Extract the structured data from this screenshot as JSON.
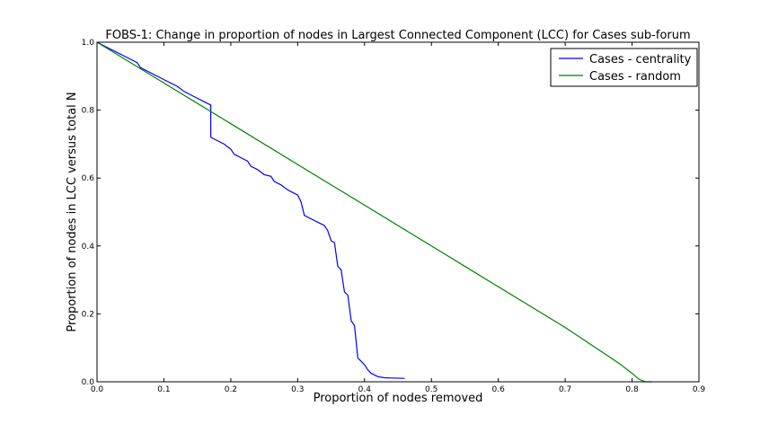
{
  "chart_data": {
    "type": "line",
    "title": "FOBS-1: Change in proportion of nodes in Largest Connected Component (LCC) for Cases sub-forum",
    "xlabel": "Proportion of nodes removed",
    "ylabel": "Proportion of nodes in LCC versus total N",
    "xlim": [
      0,
      0.9
    ],
    "ylim": [
      0,
      1.0
    ],
    "xticks": [
      "0.0",
      "0.1",
      "0.2",
      "0.3",
      "0.4",
      "0.5",
      "0.6",
      "0.7",
      "0.8",
      "0.9"
    ],
    "yticks": [
      "0.0",
      "0.2",
      "0.4",
      "0.6",
      "0.8",
      "1.0"
    ],
    "legend_position": "top-right",
    "series": [
      {
        "name": "Cases - centrality",
        "color": "#0000ff",
        "points": [
          [
            0.0,
            1.0
          ],
          [
            0.02,
            0.98
          ],
          [
            0.04,
            0.96
          ],
          [
            0.06,
            0.94
          ],
          [
            0.065,
            0.925
          ],
          [
            0.08,
            0.91
          ],
          [
            0.1,
            0.89
          ],
          [
            0.12,
            0.87
          ],
          [
            0.13,
            0.855
          ],
          [
            0.15,
            0.835
          ],
          [
            0.16,
            0.825
          ],
          [
            0.17,
            0.815
          ],
          [
            0.17,
            0.72
          ],
          [
            0.18,
            0.71
          ],
          [
            0.19,
            0.7
          ],
          [
            0.2,
            0.685
          ],
          [
            0.205,
            0.67
          ],
          [
            0.215,
            0.66
          ],
          [
            0.225,
            0.65
          ],
          [
            0.23,
            0.635
          ],
          [
            0.24,
            0.625
          ],
          [
            0.25,
            0.61
          ],
          [
            0.26,
            0.605
          ],
          [
            0.265,
            0.59
          ],
          [
            0.275,
            0.58
          ],
          [
            0.285,
            0.565
          ],
          [
            0.29,
            0.56
          ],
          [
            0.3,
            0.55
          ],
          [
            0.305,
            0.53
          ],
          [
            0.31,
            0.49
          ],
          [
            0.32,
            0.48
          ],
          [
            0.33,
            0.47
          ],
          [
            0.34,
            0.46
          ],
          [
            0.345,
            0.445
          ],
          [
            0.35,
            0.415
          ],
          [
            0.355,
            0.41
          ],
          [
            0.36,
            0.34
          ],
          [
            0.365,
            0.33
          ],
          [
            0.37,
            0.265
          ],
          [
            0.375,
            0.255
          ],
          [
            0.38,
            0.18
          ],
          [
            0.385,
            0.165
          ],
          [
            0.39,
            0.07
          ],
          [
            0.395,
            0.06
          ],
          [
            0.4,
            0.05
          ],
          [
            0.405,
            0.035
          ],
          [
            0.41,
            0.025
          ],
          [
            0.42,
            0.015
          ],
          [
            0.43,
            0.012
          ],
          [
            0.44,
            0.011
          ],
          [
            0.46,
            0.01
          ]
        ]
      },
      {
        "name": "Cases - random",
        "color": "#008000",
        "points": [
          [
            0.0,
            1.0
          ],
          [
            0.1,
            0.88
          ],
          [
            0.2,
            0.76
          ],
          [
            0.3,
            0.64
          ],
          [
            0.4,
            0.52
          ],
          [
            0.5,
            0.4
          ],
          [
            0.6,
            0.28
          ],
          [
            0.7,
            0.16
          ],
          [
            0.78,
            0.055
          ],
          [
            0.8,
            0.025
          ],
          [
            0.81,
            0.008
          ],
          [
            0.82,
            0.0
          ],
          [
            0.83,
            0.0
          ]
        ]
      }
    ]
  }
}
